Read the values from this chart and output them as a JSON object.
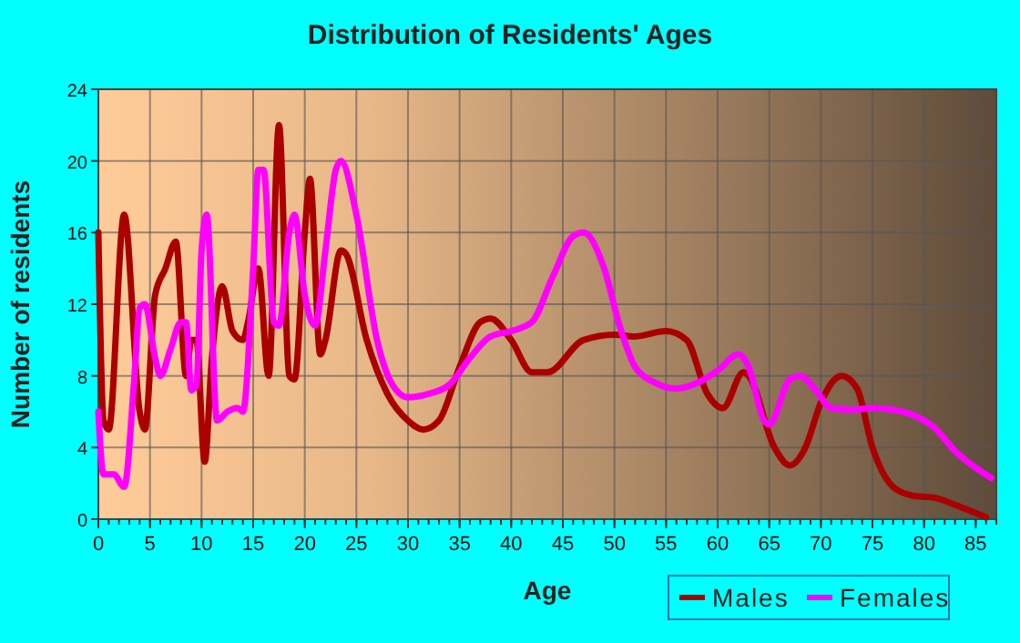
{
  "chart_data": {
    "type": "line",
    "title": "Distribution of Residents' Ages",
    "xlabel": "Age",
    "ylabel": "Number of residents",
    "xlim": [
      0,
      87
    ],
    "ylim": [
      0,
      24
    ],
    "xticks": [
      0,
      5,
      10,
      15,
      20,
      25,
      30,
      35,
      40,
      45,
      50,
      55,
      60,
      65,
      70,
      75,
      80,
      85
    ],
    "yticks": [
      0,
      4,
      8,
      12,
      16,
      20,
      24
    ],
    "grid": true,
    "legend": "bottom",
    "marker": "none",
    "line_style": "solid",
    "series": [
      {
        "name": "Males",
        "color": "#aa0000",
        "x": [
          0,
          0.5,
          1,
          2.5,
          4,
          4.5,
          5.5,
          6.5,
          7.5,
          8.5,
          9,
          9.5,
          10.3,
          11,
          12,
          13,
          14,
          14.5,
          15.5,
          16.5,
          17.5,
          18.5,
          19,
          20,
          20.5,
          21.5,
          22,
          23.5,
          24,
          26,
          28,
          30,
          31.5,
          33,
          35,
          37,
          38,
          40,
          42,
          43.5,
          47,
          50,
          52,
          55,
          57,
          59,
          60.5,
          62.5,
          63,
          65.5,
          67,
          68.5,
          70,
          72,
          73.5,
          75,
          77,
          79,
          81,
          83,
          86
        ],
        "values": [
          16,
          5.5,
          5,
          17,
          6,
          5,
          12.5,
          14,
          15.5,
          8,
          10,
          10,
          3.2,
          9,
          13,
          10.5,
          10,
          11,
          14,
          8,
          22,
          8,
          7.8,
          16,
          19,
          9.2,
          10,
          15,
          14.8,
          10,
          7,
          5.5,
          5,
          5.5,
          8.5,
          11,
          11.2,
          10,
          8.2,
          8.2,
          10,
          10.3,
          10.2,
          10.5,
          10,
          7,
          6.2,
          8.2,
          8,
          4,
          3,
          4,
          6.5,
          8,
          7.3,
          4,
          1.8,
          1.3,
          1.2,
          0.8,
          0.1
        ]
      },
      {
        "name": "Females",
        "color": "#ff00ff",
        "x": [
          0,
          0.5,
          1.5,
          2.5,
          3.5,
          4,
          4.5,
          5.5,
          6,
          7,
          8,
          8.5,
          9,
          9.5,
          10,
          10.5,
          11.5,
          12.5,
          13.5,
          14,
          15,
          15.5,
          16,
          17,
          17.5,
          18.5,
          19,
          20,
          21,
          22,
          23,
          23.5,
          25,
          27,
          28.5,
          30,
          32,
          34,
          36,
          38,
          40,
          42,
          44,
          46,
          47,
          49,
          50.5,
          52,
          54,
          56,
          58,
          60,
          62,
          63,
          64.5,
          65,
          67,
          68,
          69.5,
          71,
          73,
          75,
          77,
          79,
          81,
          83,
          86.5
        ],
        "values": [
          6,
          2.5,
          2.5,
          1.8,
          8,
          11.8,
          12,
          9,
          8,
          9.5,
          11,
          11,
          7.2,
          7.5,
          15,
          17,
          5.5,
          6,
          6.2,
          6,
          14,
          19.5,
          19.5,
          11,
          10.8,
          16,
          17,
          12.5,
          10.8,
          15,
          19.5,
          20,
          17,
          10,
          7.5,
          6.8,
          7,
          7.5,
          9,
          10.2,
          10.5,
          11,
          13.5,
          15.8,
          16,
          14,
          10.8,
          8.5,
          7.6,
          7.3,
          7.6,
          8.3,
          9.2,
          8.5,
          5.5,
          5.3,
          7.8,
          8,
          7.2,
          6.2,
          6.1,
          6.2,
          6.1,
          5.8,
          5.1,
          3.8,
          2.3
        ]
      }
    ]
  }
}
